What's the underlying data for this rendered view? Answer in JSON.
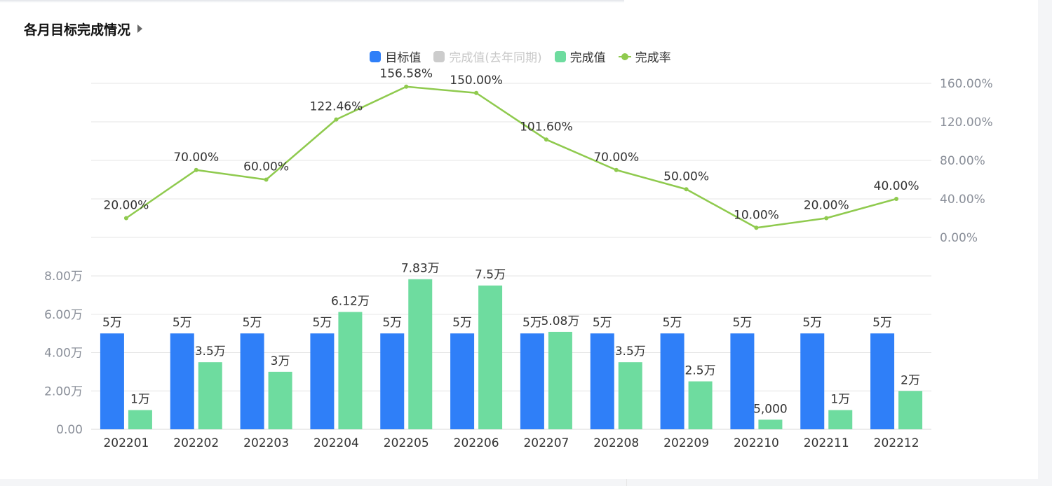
{
  "header": {
    "title": "各月目标完成情况"
  },
  "legend": [
    {
      "label": "目标值",
      "color": "#2f7ff8",
      "kind": "box",
      "inactive": false
    },
    {
      "label": "完成值(去年同期)",
      "color": "#cccccc",
      "kind": "box",
      "inactive": true
    },
    {
      "label": "完成值",
      "color": "#6edc9f",
      "kind": "box",
      "inactive": false
    },
    {
      "label": "完成率",
      "color": "#8fca4e",
      "kind": "line",
      "inactive": false
    }
  ],
  "chart_data": {
    "type": "bar",
    "categories": [
      "202201",
      "202202",
      "202203",
      "202204",
      "202205",
      "202206",
      "202207",
      "202208",
      "202209",
      "202210",
      "202211",
      "202212"
    ],
    "series": [
      {
        "name": "目标值",
        "type": "bar",
        "color": "#2f7ff8",
        "values": [
          5,
          5,
          5,
          5,
          5,
          5,
          5,
          5,
          5,
          5,
          5,
          5
        ],
        "labels": [
          "5万",
          "5万",
          "5万",
          "5万",
          "5万",
          "5万",
          "5万",
          "5万",
          "5万",
          "5万",
          "5万",
          "5万"
        ]
      },
      {
        "name": "完成值",
        "type": "bar",
        "color": "#6edc9f",
        "values": [
          1,
          3.5,
          3,
          6.12,
          7.83,
          7.5,
          5.08,
          3.5,
          2.5,
          0.5,
          1,
          2
        ],
        "labels": [
          "1万",
          "3.5万",
          "3万",
          "6.12万",
          "7.83万",
          "7.5万",
          "5.08万",
          "3.5万",
          "2.5万",
          "5,000",
          "1万",
          "2万"
        ]
      },
      {
        "name": "完成率",
        "type": "line",
        "color": "#8fca4e",
        "values": [
          20,
          70,
          60,
          122.46,
          156.58,
          150,
          101.6,
          70,
          50,
          10,
          20,
          40
        ],
        "labels": [
          "20.00%",
          "70.00%",
          "60.00%",
          "122.46%",
          "156.58%",
          "150.00%",
          "101.60%",
          "70.00%",
          "50.00%",
          "10.00%",
          "20.00%",
          "40.00%"
        ]
      }
    ],
    "y_axis_bar": {
      "unit": "万",
      "ylim": [
        0,
        8
      ],
      "ticks": [
        0,
        2,
        4,
        6,
        8
      ],
      "tick_labels": [
        "0.00",
        "2.00万",
        "4.00万",
        "6.00万",
        "8.00万"
      ]
    },
    "y_axis_rate": {
      "unit": "%",
      "ylim": [
        0,
        160
      ],
      "ticks": [
        0,
        40,
        80,
        120,
        160
      ],
      "tick_labels": [
        "0.00%",
        "40.00%",
        "80.00%",
        "120.00%",
        "160.00%"
      ]
    },
    "grid": true,
    "legend_position": "top-center"
  }
}
